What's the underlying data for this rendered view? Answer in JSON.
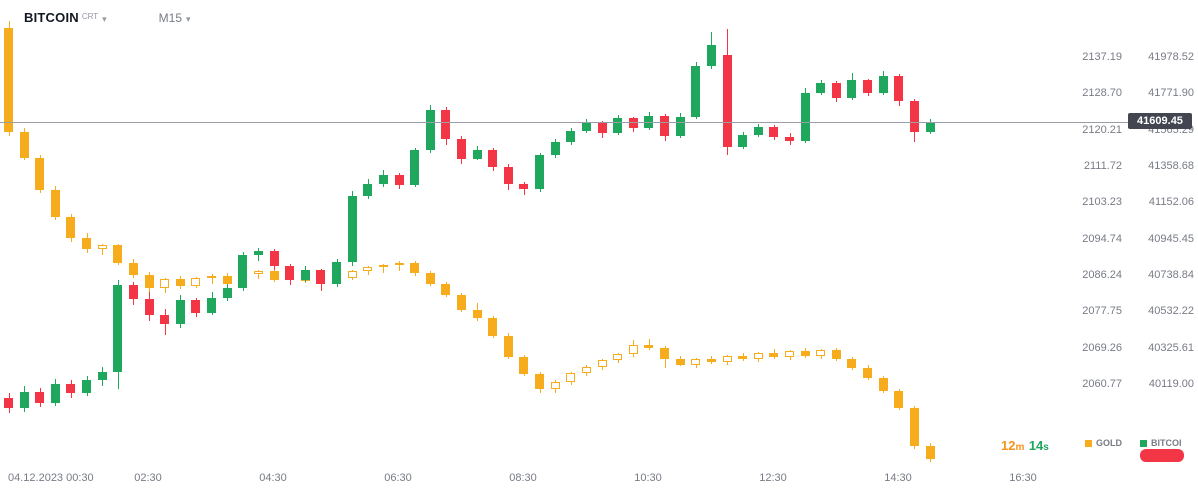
{
  "header": {
    "symbol": "BITCOIN",
    "symbol_tag": "CRT",
    "timeframe": "M15"
  },
  "current_price": {
    "value": "41609.45"
  },
  "timer": {
    "minutes": "12",
    "minutes_unit": "m",
    "seconds": "14",
    "seconds_unit": "s"
  },
  "legend": {
    "gold_label": "GOLD",
    "bitcoin_label": "BITCOI"
  },
  "colors": {
    "gold": "#F7AC1E",
    "up": "#1FA75D",
    "down": "#F23645",
    "axis_text": "#787B86",
    "badge_bg": "#434651",
    "price_line": "#9B9EA6",
    "timer_orange": "#F7941D",
    "timer_green": "#1FA75D",
    "sell_pill": "#F23645"
  },
  "chart_data": {
    "type": "candlestick",
    "timeframe": "M15",
    "time_ticks": [
      "04.12.2023 00:30",
      "02:30",
      "04:30",
      "06:30",
      "08:30",
      "10:30",
      "12:30",
      "14:30",
      "16:30"
    ],
    "gold_axis_ticks": [
      2137.19,
      2128.7,
      2120.21,
      2111.72,
      2103.23,
      2094.74,
      2086.24,
      2077.75,
      2069.26,
      2060.77
    ],
    "btc_axis_ticks": [
      41978.52,
      41771.9,
      41565.29,
      41358.68,
      41152.06,
      40945.45,
      40738.84,
      40532.22,
      40325.61,
      40119.0
    ],
    "last_price": 41609.45,
    "series": [
      {
        "name": "GOLD",
        "axis": "gold",
        "style": "hollow-up",
        "candles": [
          [
            2144.0,
            2145.6,
            2118.8,
            2119.6
          ],
          [
            2119.6,
            2120.5,
            2113.0,
            2113.6
          ],
          [
            2113.6,
            2114.3,
            2105.5,
            2106.2
          ],
          [
            2106.2,
            2107.0,
            2099.0,
            2099.8
          ],
          [
            2099.8,
            2100.5,
            2094.0,
            2095.0
          ],
          [
            2095.0,
            2096.0,
            2091.5,
            2092.3
          ],
          [
            2092.3,
            2093.6,
            2091.0,
            2093.2
          ],
          [
            2093.2,
            2093.5,
            2088.5,
            2089.0
          ],
          [
            2089.0,
            2090.0,
            2085.5,
            2086.2
          ],
          [
            2086.2,
            2087.0,
            2081.5,
            2083.3
          ],
          [
            2083.3,
            2085.6,
            2082.0,
            2085.2
          ],
          [
            2085.2,
            2086.0,
            2083.0,
            2083.7
          ],
          [
            2083.7,
            2085.8,
            2083.1,
            2085.5
          ],
          [
            2085.5,
            2086.4,
            2084.2,
            2086.1
          ],
          [
            2086.1,
            2086.6,
            2083.6,
            2084.1
          ],
          [
            2084.1,
            2086.9,
            2083.6,
            2086.5
          ],
          [
            2086.5,
            2087.4,
            2085.2,
            2087.1
          ],
          [
            2087.1,
            2087.6,
            2084.6,
            2085.1
          ],
          [
            2085.1,
            2086.6,
            2084.1,
            2086.3
          ],
          [
            2086.3,
            2086.9,
            2084.4,
            2084.9
          ],
          [
            2084.9,
            2086.7,
            2084.1,
            2086.4
          ],
          [
            2086.4,
            2087.1,
            2085.1,
            2085.6
          ],
          [
            2085.6,
            2087.3,
            2085.1,
            2087.1
          ],
          [
            2087.1,
            2088.4,
            2086.3,
            2088.1
          ],
          [
            2088.1,
            2088.9,
            2086.6,
            2088.6
          ],
          [
            2088.6,
            2089.4,
            2087.1,
            2089.1
          ],
          [
            2089.1,
            2089.6,
            2086.1,
            2086.6
          ],
          [
            2086.6,
            2087.1,
            2083.6,
            2084.1
          ],
          [
            2084.1,
            2084.6,
            2081.1,
            2081.6
          ],
          [
            2081.6,
            2082.1,
            2077.6,
            2078.1
          ],
          [
            2078.1,
            2079.6,
            2075.6,
            2076.1
          ],
          [
            2076.1,
            2076.6,
            2071.6,
            2072.1
          ],
          [
            2072.1,
            2072.6,
            2066.6,
            2067.1
          ],
          [
            2067.1,
            2067.6,
            2062.6,
            2063.1
          ],
          [
            2063.1,
            2063.6,
            2058.6,
            2059.6
          ],
          [
            2059.6,
            2061.6,
            2058.6,
            2061.3
          ],
          [
            2061.3,
            2063.6,
            2060.6,
            2063.3
          ],
          [
            2063.3,
            2065.1,
            2062.6,
            2064.8
          ],
          [
            2064.8,
            2066.6,
            2064.1,
            2066.3
          ],
          [
            2066.3,
            2068.1,
            2065.6,
            2067.8
          ],
          [
            2067.8,
            2071.0,
            2067.1,
            2069.8
          ],
          [
            2069.8,
            2071.3,
            2068.6,
            2069.1
          ],
          [
            2069.1,
            2069.6,
            2064.6,
            2066.6
          ],
          [
            2066.6,
            2067.3,
            2064.9,
            2065.3
          ],
          [
            2065.3,
            2066.9,
            2064.6,
            2066.6
          ],
          [
            2066.6,
            2067.4,
            2065.4,
            2065.9
          ],
          [
            2065.9,
            2067.6,
            2065.3,
            2067.3
          ],
          [
            2067.3,
            2068.1,
            2066.1,
            2066.5
          ],
          [
            2066.5,
            2068.3,
            2065.9,
            2068.1
          ],
          [
            2068.1,
            2068.9,
            2066.6,
            2067.1
          ],
          [
            2067.1,
            2068.7,
            2066.4,
            2068.4
          ],
          [
            2068.4,
            2069.1,
            2066.9,
            2067.4
          ],
          [
            2067.4,
            2068.9,
            2066.6,
            2068.6
          ],
          [
            2068.6,
            2069.3,
            2066.1,
            2066.5
          ],
          [
            2066.5,
            2067.1,
            2064.1,
            2064.5
          ],
          [
            2064.5,
            2065.1,
            2061.6,
            2062.1
          ],
          [
            2062.1,
            2062.7,
            2058.6,
            2059.1
          ],
          [
            2059.1,
            2059.7,
            2054.6,
            2055.1
          ],
          [
            2055.1,
            2055.7,
            2045.6,
            2046.3
          ],
          [
            2046.3,
            2046.9,
            2042.6,
            2043.3
          ]
        ]
      },
      {
        "name": "BITCOIN",
        "axis": "btc",
        "style": "solid",
        "candles": [
          [
            40040,
            40070,
            39955,
            39985
          ],
          [
            39985,
            40105,
            39960,
            40075
          ],
          [
            40075,
            40095,
            39990,
            40010
          ],
          [
            40010,
            40150,
            39995,
            40120
          ],
          [
            40120,
            40140,
            40040,
            40070
          ],
          [
            40070,
            40165,
            40050,
            40140
          ],
          [
            40140,
            40215,
            40110,
            40185
          ],
          [
            40185,
            40710,
            40090,
            40680
          ],
          [
            40680,
            40700,
            40570,
            40600
          ],
          [
            40600,
            40640,
            40480,
            40510
          ],
          [
            40510,
            40545,
            40395,
            40460
          ],
          [
            40460,
            40625,
            40440,
            40595
          ],
          [
            40595,
            40610,
            40500,
            40525
          ],
          [
            40525,
            40640,
            40510,
            40610
          ],
          [
            40610,
            40690,
            40590,
            40665
          ],
          [
            40665,
            40870,
            40645,
            40850
          ],
          [
            40850,
            40890,
            40820,
            40875
          ],
          [
            40875,
            40885,
            40770,
            40790
          ],
          [
            40790,
            40800,
            40680,
            40710
          ],
          [
            40710,
            40790,
            40700,
            40765
          ],
          [
            40765,
            40775,
            40650,
            40690
          ],
          [
            40690,
            40830,
            40670,
            40810
          ],
          [
            40810,
            41215,
            40790,
            41190
          ],
          [
            41190,
            41285,
            41170,
            41255
          ],
          [
            41255,
            41335,
            41240,
            41310
          ],
          [
            41310,
            41320,
            41230,
            41250
          ],
          [
            41250,
            41460,
            41240,
            41450
          ],
          [
            41450,
            41705,
            41435,
            41675
          ],
          [
            41675,
            41695,
            41480,
            41510
          ],
          [
            41510,
            41530,
            41370,
            41400
          ],
          [
            41400,
            41470,
            41390,
            41450
          ],
          [
            41450,
            41460,
            41330,
            41355
          ],
          [
            41355,
            41370,
            41220,
            41255
          ],
          [
            41255,
            41265,
            41195,
            41225
          ],
          [
            41225,
            41435,
            41210,
            41420
          ],
          [
            41420,
            41510,
            41405,
            41495
          ],
          [
            41495,
            41575,
            41480,
            41560
          ],
          [
            41560,
            41625,
            41545,
            41605
          ],
          [
            41605,
            41615,
            41520,
            41545
          ],
          [
            41545,
            41650,
            41535,
            41630
          ],
          [
            41630,
            41640,
            41550,
            41575
          ],
          [
            41575,
            41665,
            41565,
            41645
          ],
          [
            41645,
            41655,
            41500,
            41530
          ],
          [
            41530,
            41660,
            41515,
            41640
          ],
          [
            41640,
            41950,
            41625,
            41930
          ],
          [
            41930,
            42120,
            41910,
            42045
          ],
          [
            41990,
            42135,
            41420,
            41465
          ],
          [
            41465,
            41550,
            41455,
            41535
          ],
          [
            41535,
            41595,
            41525,
            41580
          ],
          [
            41580,
            41590,
            41505,
            41525
          ],
          [
            41525,
            41545,
            41480,
            41500
          ],
          [
            41500,
            41800,
            41490,
            41775
          ],
          [
            41775,
            41850,
            41765,
            41830
          ],
          [
            41830,
            41840,
            41720,
            41745
          ],
          [
            41745,
            41890,
            41735,
            41845
          ],
          [
            41845,
            41855,
            41755,
            41775
          ],
          [
            41775,
            41900,
            41765,
            41870
          ],
          [
            41870,
            41880,
            41700,
            41730
          ],
          [
            41730,
            41740,
            41495,
            41550
          ],
          [
            41550,
            41625,
            41540,
            41609.45
          ]
        ]
      }
    ]
  }
}
